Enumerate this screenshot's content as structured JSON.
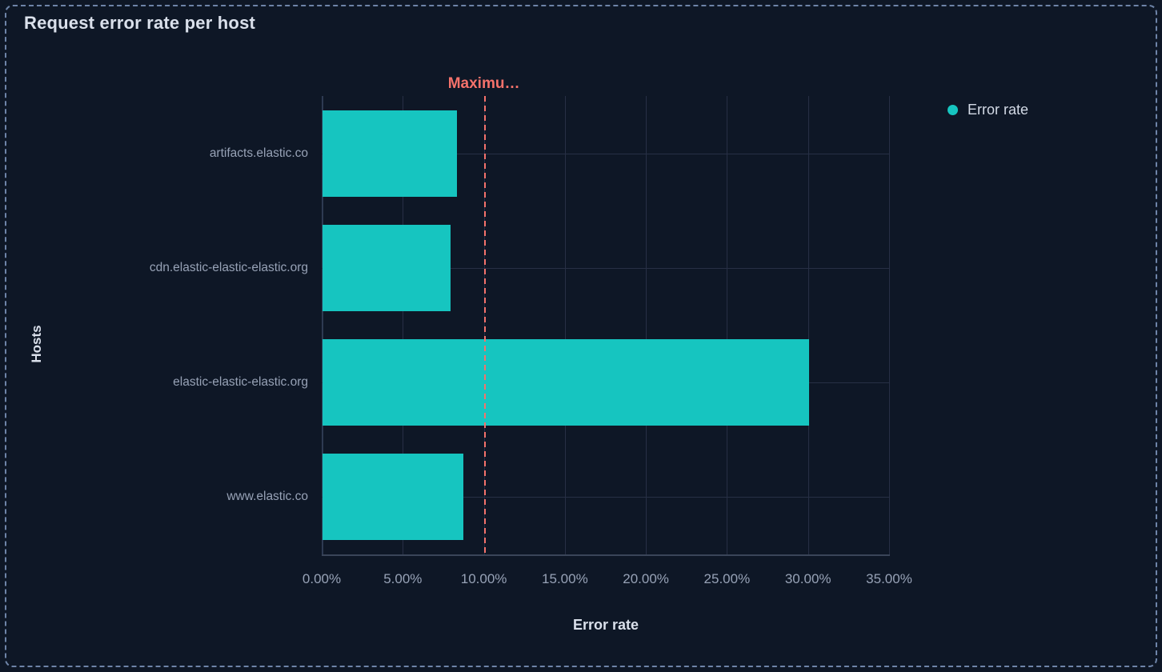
{
  "panel": {
    "title": "Request error rate per host"
  },
  "colors": {
    "background": "#0e1726",
    "panel_border": "#6e84a8",
    "bar": "#16c5c0",
    "threshold": "#f5726b",
    "gridline": "#272f45",
    "text_primary": "#dae0eb",
    "text_secondary": "#97a2b6"
  },
  "legend": {
    "items": [
      {
        "label": "Error rate",
        "color": "#16c5c0"
      }
    ]
  },
  "chart_data": {
    "type": "bar",
    "orientation": "horizontal",
    "title": "Request error rate per host",
    "xlabel": "Error rate",
    "ylabel": "Hosts",
    "categories": [
      "artifacts.elastic.co",
      "cdn.elastic-elastic-elastic.org",
      "elastic-elastic-elastic.org",
      "www.elastic.co"
    ],
    "series": [
      {
        "name": "Error rate",
        "color": "#16c5c0",
        "values": [
          8.3,
          7.9,
          30.0,
          8.7
        ],
        "unit": "%"
      }
    ],
    "xlim": [
      0,
      35
    ],
    "xtick_values": [
      0,
      5,
      10,
      15,
      20,
      25,
      30,
      35
    ],
    "xtick_labels": [
      "0.00%",
      "5.00%",
      "10.00%",
      "15.00%",
      "20.00%",
      "25.00%",
      "30.00%",
      "35.00%"
    ],
    "grid": true,
    "legend_position": "top-right",
    "annotation": {
      "type": "vertical-line",
      "label": "Maximu…",
      "value": 10,
      "line_style": "dashed",
      "color": "#f5726b"
    }
  }
}
